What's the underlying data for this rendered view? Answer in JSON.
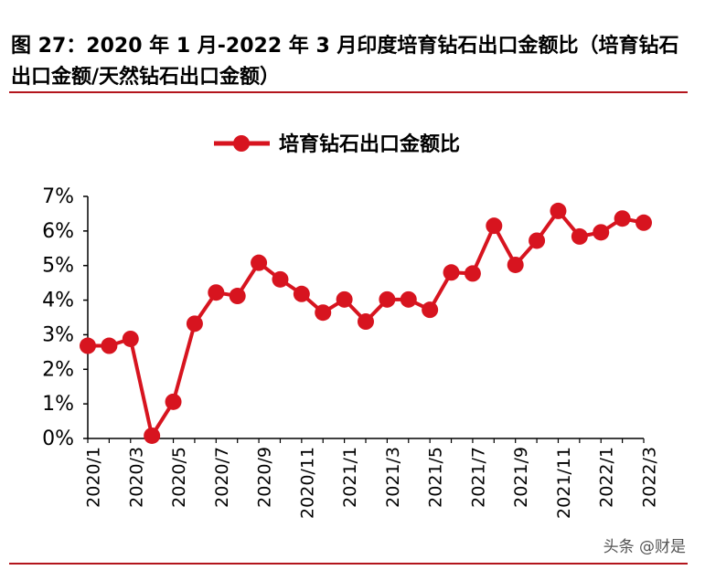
{
  "title": "图 27：2020 年 1 月-2022 年 3 月印度培育钻石出口金额比（培育钻石出口金额/天然钻石出口金额）",
  "watermark": "头条 @财是",
  "colors": {
    "accent": "#d7141f",
    "rule": "#b3151c"
  },
  "chart_data": {
    "type": "line",
    "legend": "培育钻石出口金额比",
    "x": [
      "2020/1",
      "2020/2",
      "2020/3",
      "2020/4",
      "2020/5",
      "2020/6",
      "2020/7",
      "2020/8",
      "2020/9",
      "2020/10",
      "2020/11",
      "2020/12",
      "2021/1",
      "2021/2",
      "2021/3",
      "2021/4",
      "2021/5",
      "2021/6",
      "2021/7",
      "2021/8",
      "2021/9",
      "2021/10",
      "2021/11",
      "2021/12",
      "2022/1",
      "2022/2",
      "2022/3"
    ],
    "x_tick_labels": [
      "2020/1",
      "2020/3",
      "2020/5",
      "2020/7",
      "2020/9",
      "2020/11",
      "2021/1",
      "2021/3",
      "2021/5",
      "2021/7",
      "2021/9",
      "2021/11",
      "2022/1",
      "2022/3"
    ],
    "series": [
      {
        "name": "培育钻石出口金额比",
        "values": [
          2.68,
          2.68,
          2.88,
          0.08,
          1.06,
          3.32,
          4.22,
          4.12,
          5.08,
          4.6,
          4.18,
          3.64,
          4.02,
          3.38,
          4.02,
          4.02,
          3.72,
          4.8,
          4.77,
          6.15,
          5.02,
          5.72,
          6.58,
          5.84,
          5.96,
          6.36,
          6.24
        ]
      }
    ],
    "ylim": [
      0,
      7
    ],
    "yticks": [
      "0%",
      "1%",
      "2%",
      "3%",
      "4%",
      "5%",
      "6%",
      "7%"
    ],
    "legend_position": "top-center",
    "grid": false
  }
}
